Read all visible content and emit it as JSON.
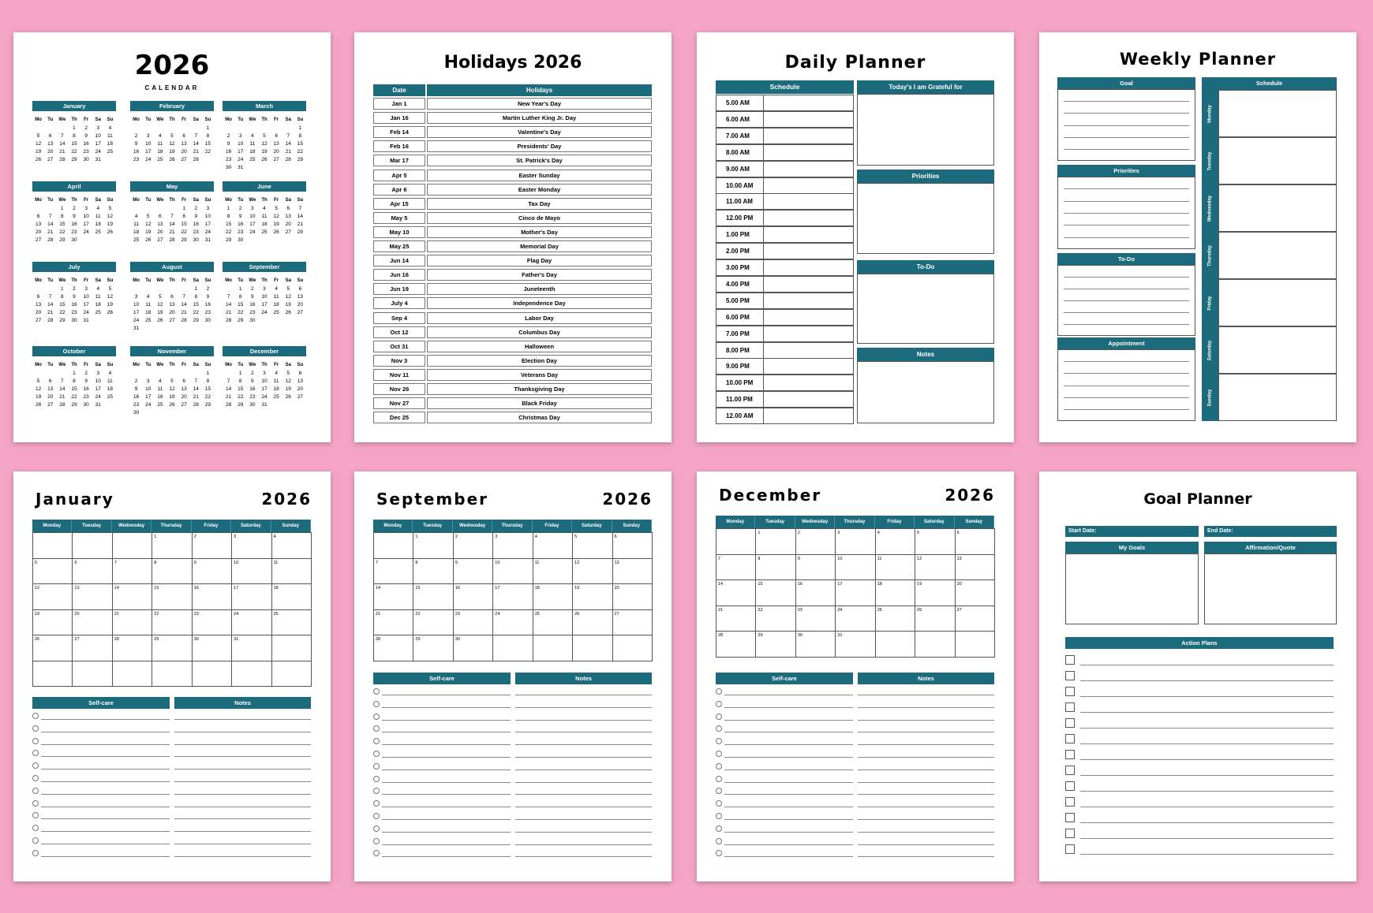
{
  "year_calendar": {
    "year": "2026",
    "subtitle": "CALENDAR",
    "weekdays": [
      "Mo",
      "Tu",
      "We",
      "Th",
      "Fr",
      "Sa",
      "Su"
    ],
    "months": [
      {
        "name": "January",
        "weeks": [
          [
            1,
            2,
            3,
            4
          ],
          [
            5,
            6,
            7,
            8,
            9,
            10,
            11
          ],
          [
            12,
            13,
            14,
            15,
            16,
            17,
            18
          ],
          [
            19,
            20,
            21,
            22,
            23,
            24,
            25
          ],
          [
            26,
            27,
            28,
            29,
            30,
            31
          ]
        ]
      },
      {
        "name": "February",
        "weeks": [
          [
            1
          ],
          [
            2,
            3,
            4,
            5,
            6,
            7,
            8
          ],
          [
            9,
            10,
            11,
            12,
            13,
            14,
            15
          ],
          [
            16,
            17,
            18,
            19,
            20,
            21,
            22
          ],
          [
            23,
            24,
            25,
            26,
            27,
            28
          ]
        ]
      },
      {
        "name": "March",
        "weeks": [
          [
            1
          ],
          [
            2,
            3,
            4,
            5,
            6,
            7,
            8
          ],
          [
            9,
            10,
            11,
            12,
            13,
            14,
            15
          ],
          [
            16,
            17,
            18,
            19,
            20,
            21,
            22
          ],
          [
            23,
            24,
            25,
            26,
            27,
            28,
            29
          ],
          [
            30,
            31
          ]
        ]
      },
      {
        "name": "April",
        "weeks": [
          [
            1,
            2,
            3,
            4,
            5
          ],
          [
            6,
            7,
            8,
            9,
            10,
            11,
            12
          ],
          [
            13,
            14,
            15,
            16,
            17,
            18,
            19
          ],
          [
            20,
            21,
            22,
            23,
            24,
            25,
            26
          ],
          [
            27,
            28,
            29,
            30
          ]
        ]
      },
      {
        "name": "May",
        "weeks": [
          [
            1,
            2,
            3
          ],
          [
            4,
            5,
            6,
            7,
            8,
            9,
            10
          ],
          [
            11,
            12,
            13,
            14,
            15,
            16,
            17
          ],
          [
            18,
            19,
            20,
            21,
            22,
            23,
            24
          ],
          [
            25,
            26,
            27,
            28,
            29,
            30,
            31
          ]
        ]
      },
      {
        "name": "June",
        "weeks": [
          [
            1,
            2,
            3,
            4,
            5,
            6,
            7
          ],
          [
            8,
            9,
            10,
            11,
            12,
            13,
            14
          ],
          [
            15,
            16,
            17,
            18,
            19,
            20,
            21
          ],
          [
            22,
            23,
            24,
            25,
            26,
            27,
            28
          ],
          [
            29,
            30
          ]
        ]
      },
      {
        "name": "July",
        "weeks": [
          [
            1,
            2,
            3,
            4,
            5
          ],
          [
            6,
            7,
            8,
            9,
            10,
            11,
            12
          ],
          [
            13,
            14,
            15,
            16,
            17,
            18,
            19
          ],
          [
            20,
            21,
            22,
            23,
            24,
            25,
            26
          ],
          [
            27,
            28,
            29,
            30,
            31
          ]
        ]
      },
      {
        "name": "August",
        "weeks": [
          [
            1,
            2
          ],
          [
            3,
            4,
            5,
            6,
            7,
            8,
            9
          ],
          [
            10,
            11,
            12,
            13,
            14,
            15,
            16
          ],
          [
            17,
            18,
            19,
            20,
            21,
            22,
            23
          ],
          [
            24,
            25,
            26,
            27,
            28,
            29,
            30
          ],
          [
            31
          ]
        ]
      },
      {
        "name": "September",
        "weeks": [
          [
            1,
            2,
            3,
            4,
            5,
            6
          ],
          [
            7,
            8,
            9,
            10,
            11,
            12,
            13
          ],
          [
            14,
            15,
            16,
            17,
            18,
            19,
            20
          ],
          [
            21,
            22,
            23,
            24,
            25,
            26,
            27
          ],
          [
            28,
            29,
            30
          ]
        ]
      },
      {
        "name": "October",
        "weeks": [
          [
            1,
            2,
            3,
            4
          ],
          [
            5,
            6,
            7,
            8,
            9,
            10,
            11
          ],
          [
            12,
            13,
            14,
            15,
            16,
            17,
            18
          ],
          [
            19,
            20,
            21,
            22,
            23,
            24,
            25
          ],
          [
            26,
            27,
            28,
            29,
            30,
            31
          ]
        ]
      },
      {
        "name": "November",
        "weeks": [
          [
            1
          ],
          [
            2,
            3,
            4,
            5,
            6,
            7,
            8
          ],
          [
            9,
            10,
            11,
            12,
            13,
            14,
            15
          ],
          [
            16,
            17,
            18,
            19,
            20,
            21,
            22
          ],
          [
            23,
            24,
            25,
            26,
            27,
            28,
            29
          ],
          [
            30
          ]
        ]
      },
      {
        "name": "December",
        "weeks": [
          [
            1,
            2,
            3,
            4,
            5,
            6
          ],
          [
            7,
            8,
            9,
            10,
            11,
            12,
            13
          ],
          [
            14,
            15,
            16,
            17,
            18,
            19,
            20
          ],
          [
            21,
            22,
            23,
            24,
            25,
            26,
            27
          ],
          [
            28,
            29,
            30,
            31
          ]
        ]
      }
    ]
  },
  "holidays": {
    "title": "Holidays 2026",
    "columns": [
      "Date",
      "Holidays"
    ],
    "rows": [
      [
        "Jan 1",
        "New Year's Day"
      ],
      [
        "Jan 16",
        "Martin Luther King Jr. Day"
      ],
      [
        "Feb 14",
        "Valentine's Day"
      ],
      [
        "Feb 16",
        "Presidents' Day"
      ],
      [
        "Mar 17",
        "St. Patrick's Day"
      ],
      [
        "Apr 5",
        "Easter Sunday"
      ],
      [
        "Apr 6",
        "Easter Monday"
      ],
      [
        "Apr 15",
        "Tax Day"
      ],
      [
        "May 5",
        "Cinco de Mayo"
      ],
      [
        "May 10",
        "Mother's Day"
      ],
      [
        "May 25",
        "Memorial Day"
      ],
      [
        "Jun 14",
        "Flag Day"
      ],
      [
        "Jun 16",
        "Father's Day"
      ],
      [
        "Jun 19",
        "Juneteenth"
      ],
      [
        "July 4",
        "Independence Day"
      ],
      [
        "Sep 4",
        "Labor Day"
      ],
      [
        "Oct 12",
        "Columbus Day"
      ],
      [
        "Oct 31",
        "Halloween"
      ],
      [
        "Nov 3",
        "Election Day"
      ],
      [
        "Nov 11",
        "Veterans Day"
      ],
      [
        "Nov 26",
        "Thanksgiving Day"
      ],
      [
        "Nov 27",
        "Black Friday"
      ],
      [
        "Dec 25",
        "Christmas Day"
      ]
    ]
  },
  "daily_planner": {
    "title": "Daily Planner",
    "schedule": "Schedule",
    "times": [
      "5.00 AM",
      "6.00 AM",
      "7.00 AM",
      "8.00 AM",
      "9.00 AM",
      "10.00 AM",
      "11.00 AM",
      "12.00 PM",
      "1.00 PM",
      "2.00 PM",
      "3.00 PM",
      "4.00 PM",
      "5.00 PM",
      "6.00 PM",
      "7.00 PM",
      "8.00 PM",
      "9.00 PM",
      "10.00 PM",
      "11.00 PM",
      "12.00 AM"
    ],
    "sections": [
      "Today's I am Grateful for",
      "Priorities",
      "To-Do",
      "Notes"
    ]
  },
  "weekly_planner": {
    "title": "Weekly Planner",
    "sections": [
      "Goal",
      "Priorities",
      "To-Do",
      "Appointment"
    ],
    "schedule": "Schedule",
    "days": [
      "Monday",
      "Tuesday",
      "Wednesday",
      "Thursday",
      "Friday",
      "Saturday",
      "Sunday"
    ]
  },
  "month_pages": [
    {
      "month": "January",
      "year": "2026",
      "weekdays": [
        "Monday",
        "Tuesday",
        "Wednesday",
        "Thursday",
        "Friday",
        "Saturday",
        "Sunday"
      ],
      "weeks": [
        [
          1,
          2,
          3,
          4
        ],
        [
          5,
          6,
          7,
          8,
          9,
          10,
          11
        ],
        [
          12,
          13,
          14,
          15,
          16,
          17,
          18
        ],
        [
          19,
          20,
          21,
          22,
          23,
          24,
          25
        ],
        [
          26,
          27,
          28,
          29,
          30,
          31
        ]
      ],
      "self_care": "Self-care",
      "notes": "Notes"
    },
    {
      "month": "September",
      "year": "2026",
      "weekdays": [
        "Monday",
        "Tuesday",
        "Wednesday",
        "Thursday",
        "Friday",
        "Saturday",
        "Sunday"
      ],
      "weeks": [
        [
          1,
          2,
          3,
          4,
          5,
          6
        ],
        [
          7,
          8,
          9,
          10,
          11,
          12,
          13
        ],
        [
          14,
          15,
          16,
          17,
          18,
          19,
          20
        ],
        [
          21,
          22,
          23,
          24,
          25,
          26,
          27
        ],
        [
          28,
          29,
          30
        ]
      ],
      "self_care": "Self-care",
      "notes": "Notes"
    },
    {
      "month": "December",
      "year": "2026",
      "weekdays": [
        "Monday",
        "Tuesday",
        "Wednesday",
        "Thursday",
        "Friday",
        "Saturday",
        "Sunday"
      ],
      "weeks": [
        [
          1,
          2,
          3,
          4,
          5,
          6
        ],
        [
          7,
          8,
          9,
          10,
          11,
          12,
          13
        ],
        [
          14,
          15,
          16,
          17,
          18,
          19,
          20
        ],
        [
          21,
          22,
          23,
          24,
          25,
          26,
          27
        ],
        [
          28,
          29,
          30,
          31
        ]
      ],
      "self_care": "Self-care",
      "notes": "Notes"
    }
  ],
  "goal_planner": {
    "title": "Goal Planner",
    "start_date": "Start Date:",
    "end_date": "End Date:",
    "my_goals": "My Goals",
    "affirmation": "Affirmation/Quote",
    "action_plans": "Action Plans"
  }
}
